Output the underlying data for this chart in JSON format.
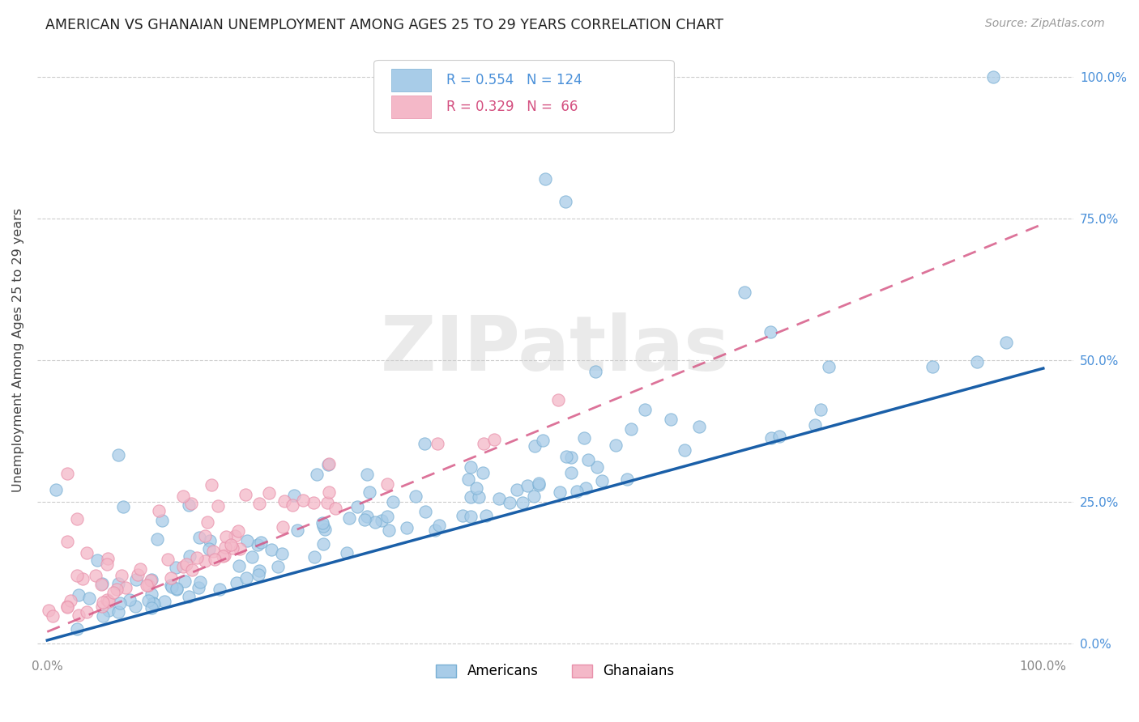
{
  "title": "AMERICAN VS GHANAIAN UNEMPLOYMENT AMONG AGES 25 TO 29 YEARS CORRELATION CHART",
  "source": "Source: ZipAtlas.com",
  "ylabel": "Unemployment Among Ages 25 to 29 years",
  "legend_americans": "Americans",
  "legend_ghanaians": "Ghanaians",
  "r_american": "0.554",
  "n_american": "124",
  "r_ghanaian": "0.329",
  "n_ghanaian": "66",
  "american_color": "#a8cce8",
  "ghanaian_color": "#f4b8c8",
  "american_edge_color": "#7ab0d4",
  "ghanaian_edge_color": "#e890aa",
  "american_line_color": "#1a5fa8",
  "ghanaian_line_color": "#d45080",
  "watermark": "ZIPatlas",
  "background_color": "#ffffff",
  "right_tick_color": "#4a90d9",
  "x_tick_color": "#888888"
}
